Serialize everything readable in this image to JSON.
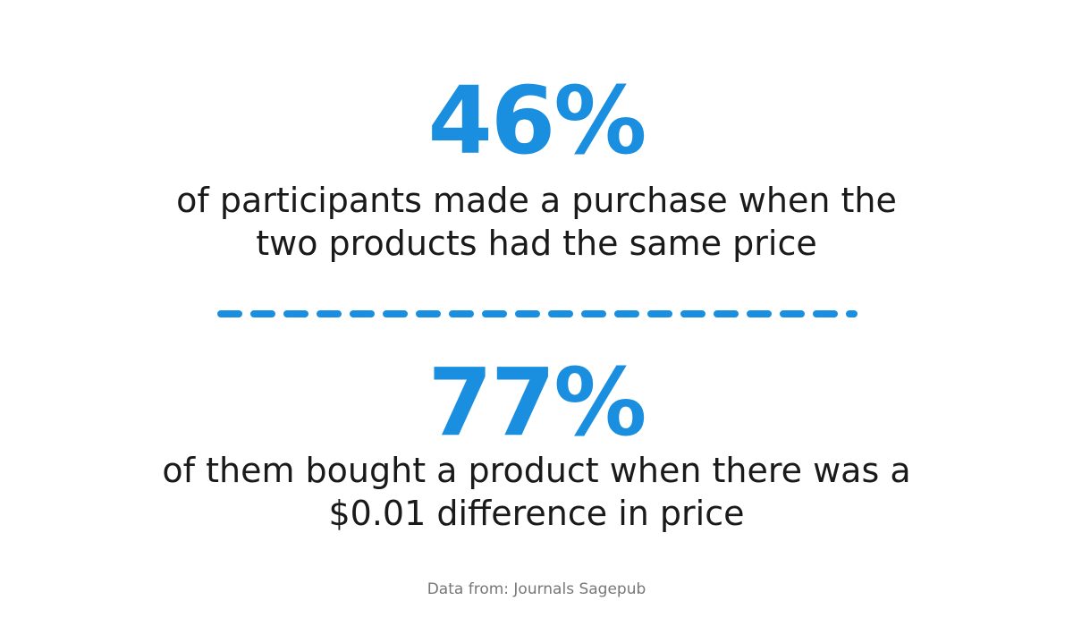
{
  "stats": [
    {
      "value": "46%",
      "lines": [
        "of participants made a purchase when the",
        "two products had the same price"
      ]
    },
    {
      "value": "77%",
      "lines": [
        "of them bought a product when there was a",
        "$0.01 difference in price"
      ]
    }
  ],
  "source": "Data from: Journals Sagepub"
}
